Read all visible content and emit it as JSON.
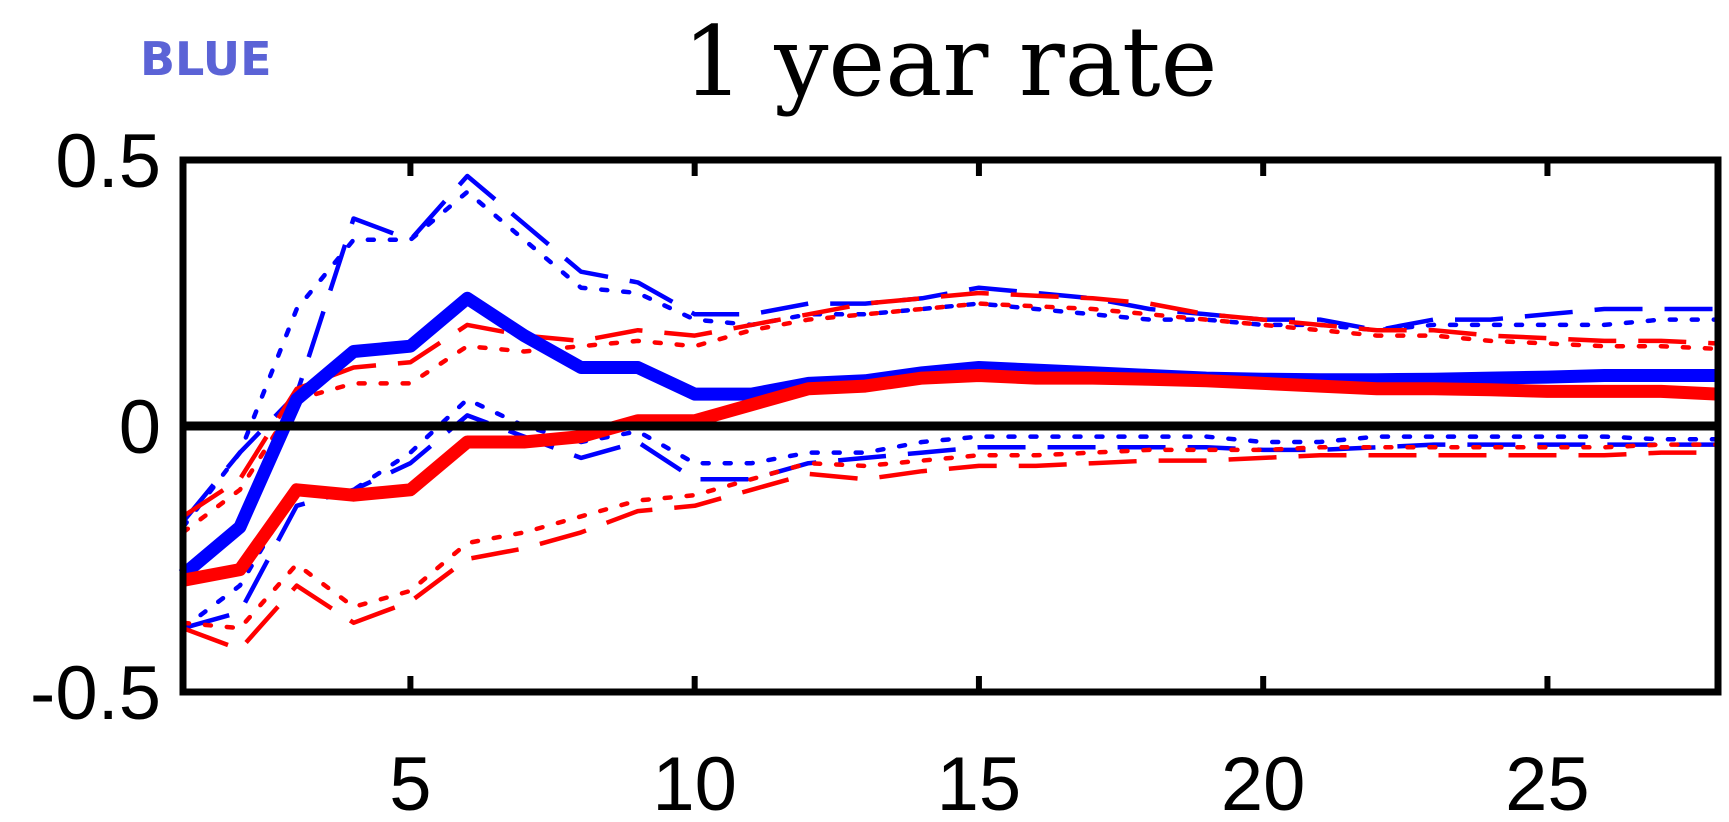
{
  "chart_data": {
    "type": "line",
    "title": "1 year rate",
    "xlabel": "",
    "ylabel": "",
    "xlim": [
      1,
      28
    ],
    "ylim": [
      -0.5,
      0.5
    ],
    "xticks": [
      5,
      10,
      15,
      20,
      25
    ],
    "xtick_labels": [
      "5",
      "10",
      "15",
      "20",
      "25"
    ],
    "yticks": [
      0.5,
      0,
      -0.5
    ],
    "ytick_labels": [
      "0.5",
      "0",
      "-0.5"
    ],
    "zero_line": 0,
    "grid": false,
    "legend": "none",
    "colors": {
      "blue": "#0000ff",
      "red": "#ff0000",
      "zero": "#000000"
    },
    "x": [
      1,
      2,
      3,
      4,
      5,
      6,
      7,
      8,
      9,
      10,
      11,
      12,
      13,
      14,
      15,
      16,
      17,
      18,
      19,
      20,
      21,
      22,
      23,
      24,
      25,
      26,
      27,
      28
    ],
    "series": [
      {
        "color": "blue",
        "style": "solid",
        "weight": "thick",
        "values": [
          -0.28,
          -0.19,
          0.05,
          0.14,
          0.15,
          0.24,
          0.17,
          0.11,
          0.11,
          0.06,
          0.06,
          0.08,
          0.085,
          0.1,
          0.11,
          0.105,
          0.1,
          0.095,
          0.09,
          0.088,
          0.087,
          0.087,
          0.088,
          0.09,
          0.092,
          0.095,
          0.095,
          0.095
        ]
      },
      {
        "color": "red",
        "style": "solid",
        "weight": "thick",
        "values": [
          -0.29,
          -0.27,
          -0.12,
          -0.13,
          -0.12,
          -0.03,
          -0.03,
          -0.02,
          0.01,
          0.01,
          0.04,
          0.07,
          0.075,
          0.09,
          0.095,
          0.09,
          0.09,
          0.088,
          0.085,
          0.08,
          0.075,
          0.07,
          0.07,
          0.068,
          0.065,
          0.065,
          0.065,
          0.06
        ]
      },
      {
        "color": "blue",
        "style": "dashed",
        "weight": "thin",
        "values": [
          -0.18,
          -0.05,
          0.06,
          0.39,
          0.35,
          0.47,
          0.38,
          0.29,
          0.27,
          0.21,
          0.21,
          0.23,
          0.23,
          0.24,
          0.26,
          0.25,
          0.24,
          0.22,
          0.21,
          0.2,
          0.2,
          0.18,
          0.2,
          0.2,
          0.21,
          0.22,
          0.22,
          0.22
        ]
      },
      {
        "color": "blue",
        "style": "dotted",
        "weight": "thin",
        "values": [
          -0.19,
          -0.05,
          0.22,
          0.35,
          0.35,
          0.44,
          0.35,
          0.26,
          0.25,
          0.2,
          0.19,
          0.21,
          0.21,
          0.22,
          0.23,
          0.22,
          0.21,
          0.2,
          0.2,
          0.19,
          0.19,
          0.18,
          0.19,
          0.19,
          0.19,
          0.19,
          0.2,
          0.2
        ]
      },
      {
        "color": "blue",
        "style": "dashed",
        "weight": "thin",
        "values": [
          -0.38,
          -0.35,
          -0.15,
          -0.12,
          -0.07,
          0.02,
          -0.02,
          -0.06,
          -0.03,
          -0.1,
          -0.1,
          -0.07,
          -0.06,
          -0.05,
          -0.04,
          -0.04,
          -0.04,
          -0.04,
          -0.04,
          -0.045,
          -0.045,
          -0.04,
          -0.035,
          -0.035,
          -0.035,
          -0.035,
          -0.035,
          -0.035
        ]
      },
      {
        "color": "blue",
        "style": "dotted",
        "weight": "thin",
        "values": [
          -0.38,
          -0.3,
          -0.12,
          -0.12,
          -0.05,
          0.05,
          0.0,
          -0.03,
          -0.01,
          -0.07,
          -0.07,
          -0.05,
          -0.05,
          -0.03,
          -0.02,
          -0.02,
          -0.02,
          -0.02,
          -0.02,
          -0.03,
          -0.03,
          -0.02,
          -0.02,
          -0.02,
          -0.02,
          -0.02,
          -0.025,
          -0.025
        ]
      },
      {
        "color": "red",
        "style": "dashed",
        "weight": "thin",
        "values": [
          -0.17,
          -0.1,
          0.07,
          0.11,
          0.12,
          0.19,
          0.17,
          0.16,
          0.18,
          0.17,
          0.19,
          0.21,
          0.23,
          0.24,
          0.25,
          0.245,
          0.24,
          0.23,
          0.21,
          0.2,
          0.19,
          0.18,
          0.18,
          0.17,
          0.165,
          0.16,
          0.16,
          0.155
        ]
      },
      {
        "color": "red",
        "style": "dotted",
        "weight": "thin",
        "values": [
          -0.2,
          -0.12,
          0.05,
          0.08,
          0.08,
          0.15,
          0.14,
          0.15,
          0.16,
          0.15,
          0.18,
          0.2,
          0.21,
          0.22,
          0.23,
          0.225,
          0.22,
          0.21,
          0.2,
          0.19,
          0.18,
          0.17,
          0.17,
          0.16,
          0.155,
          0.15,
          0.15,
          0.145
        ]
      },
      {
        "color": "red",
        "style": "dashed",
        "weight": "thin",
        "values": [
          -0.38,
          -0.42,
          -0.3,
          -0.37,
          -0.33,
          -0.25,
          -0.23,
          -0.2,
          -0.16,
          -0.15,
          -0.12,
          -0.09,
          -0.1,
          -0.085,
          -0.075,
          -0.075,
          -0.07,
          -0.065,
          -0.065,
          -0.06,
          -0.055,
          -0.055,
          -0.055,
          -0.055,
          -0.055,
          -0.055,
          -0.05,
          -0.05
        ]
      },
      {
        "color": "red",
        "style": "dotted",
        "weight": "thin",
        "values": [
          -0.37,
          -0.38,
          -0.26,
          -0.34,
          -0.31,
          -0.22,
          -0.2,
          -0.17,
          -0.14,
          -0.13,
          -0.1,
          -0.07,
          -0.075,
          -0.065,
          -0.055,
          -0.055,
          -0.05,
          -0.045,
          -0.045,
          -0.045,
          -0.04,
          -0.04,
          -0.04,
          -0.04,
          -0.04,
          -0.04,
          -0.035,
          -0.035
        ]
      }
    ]
  },
  "watermark": {
    "text": "BLUE",
    "color": "#5b63d6"
  }
}
